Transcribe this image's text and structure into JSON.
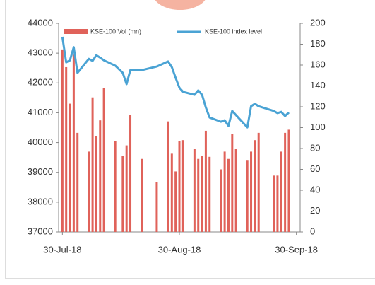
{
  "chart_data": {
    "type": "combo",
    "x": [
      "2018-07-30",
      "2018-07-31",
      "2018-08-01",
      "2018-08-02",
      "2018-08-03",
      "2018-08-06",
      "2018-08-07",
      "2018-08-08",
      "2018-08-09",
      "2018-08-10",
      "2018-08-13",
      "2018-08-15",
      "2018-08-16",
      "2018-08-17",
      "2018-08-20",
      "2018-08-24",
      "2018-08-27",
      "2018-08-28",
      "2018-08-29",
      "2018-08-30",
      "2018-08-31",
      "2018-09-03",
      "2018-09-04",
      "2018-09-05",
      "2018-09-06",
      "2018-09-07",
      "2018-09-10",
      "2018-09-11",
      "2018-09-12",
      "2018-09-13",
      "2018-09-14",
      "2018-09-17",
      "2018-09-18",
      "2018-09-19",
      "2018-09-20",
      "2018-09-24",
      "2018-09-25",
      "2018-09-26",
      "2018-09-27",
      "2018-09-28"
    ],
    "series": [
      {
        "name": "KSE-100 Vol (mn)",
        "type": "bar",
        "axis": "y2",
        "color": "#e0625a",
        "values": [
          175,
          158,
          123,
          170,
          95,
          77,
          129,
          92,
          107,
          138,
          87,
          73,
          83,
          112,
          70,
          48,
          106,
          75,
          58,
          87,
          88,
          80,
          70,
          73,
          97,
          72,
          60,
          77,
          70,
          94,
          80,
          69,
          77,
          88,
          95,
          54,
          54,
          77,
          95,
          98
        ]
      },
      {
        "name": "KSE-100 index level",
        "type": "line",
        "color": "#4aa3d4",
        "values": [
          43550,
          42690,
          42760,
          43200,
          42340,
          42810,
          42740,
          42930,
          42850,
          42760,
          42580,
          42340,
          41960,
          42430,
          42430,
          42550,
          42720,
          42530,
          42170,
          41840,
          41700,
          41600,
          41750,
          41600,
          41180,
          40840,
          40700,
          40750,
          40560,
          41060,
          40920,
          40510,
          41220,
          41300,
          41220,
          41060,
          40990,
          41030,
          40890,
          41010
        ]
      }
    ],
    "xlim": [
      "2018-07-29",
      "2018-10-01"
    ],
    "xticks": [
      {
        "value": "2018-07-30",
        "label": "30-Jul-18"
      },
      {
        "value": "2018-08-30",
        "label": "30-Aug-18"
      },
      {
        "value": "2018-09-30",
        "label": "30-Sep-18"
      }
    ],
    "ylim": [
      37000,
      44000
    ],
    "yticks": [
      37000,
      38000,
      39000,
      40000,
      41000,
      42000,
      43000,
      44000
    ],
    "y2lim": [
      0,
      200
    ],
    "y2ticks": [
      0,
      20,
      40,
      60,
      80,
      100,
      120,
      140,
      160,
      180,
      200
    ],
    "legend": "top",
    "grid": false
  }
}
